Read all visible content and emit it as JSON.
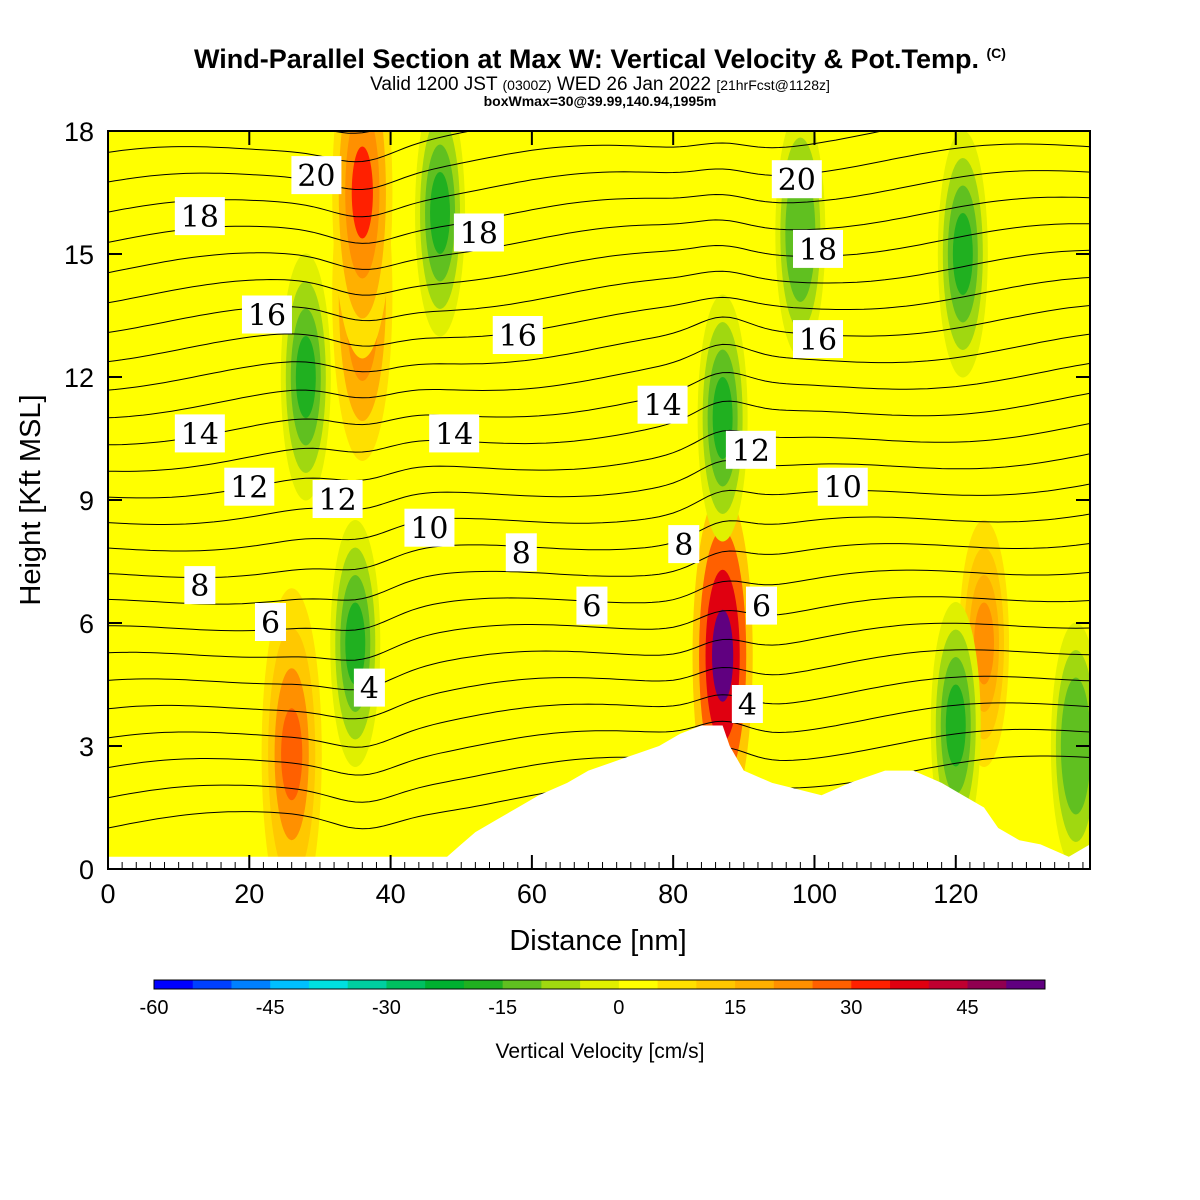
{
  "header": {
    "title": "Wind-Parallel Section at Max W: Vertical Velocity & Pot.Temp.",
    "title_mark": "(C)",
    "valid_prefix": "Valid 1200 JST",
    "valid_utc": "(0300Z)",
    "valid_date": "WED 26 Jan 2022",
    "forecast_tag": "[21hrFcst@1128z]",
    "box_info": "boxWmax=30@39.99,140.94,1995m"
  },
  "chart_data": {
    "type": "heatmap",
    "xlabel": "Distance [nm]",
    "ylabel": "Height [Kft MSL]",
    "xlim": [
      0,
      139
    ],
    "ylim": [
      0,
      18
    ],
    "x_ticks": [
      0,
      20,
      40,
      60,
      80,
      100,
      120
    ],
    "y_ticks": [
      0,
      3,
      6,
      9,
      12,
      15,
      18
    ],
    "grid": false,
    "colorbar": {
      "title": "Vertical Velocity [cm/s]",
      "min": -60,
      "max": 55,
      "step": 5,
      "tick_values": [
        -60,
        -45,
        -30,
        -15,
        0,
        15,
        30,
        45
      ],
      "tick_labels": [
        "-60",
        "-45",
        "-30",
        "-15",
        "0",
        "15",
        "30",
        "45"
      ],
      "colors": [
        "#0000ff",
        "#0040ff",
        "#0080ff",
        "#00c0ff",
        "#00e0e0",
        "#00d0a0",
        "#00c060",
        "#00b030",
        "#20b020",
        "#60c020",
        "#a0d810",
        "#e0f000",
        "#ffff00",
        "#ffe000",
        "#ffc800",
        "#ffb000",
        "#ff9000",
        "#ff6000",
        "#ff2000",
        "#e00010",
        "#c00030",
        "#900050",
        "#600080"
      ]
    },
    "vertical_velocity_features": [
      {
        "x": 26,
        "z": 2.8,
        "w": 28,
        "type": "updraft"
      },
      {
        "x": 36,
        "z": 14,
        "w": 30,
        "type": "updraft"
      },
      {
        "x": 36,
        "z": 16.5,
        "w": 32,
        "type": "updraft"
      },
      {
        "x": 87,
        "z": 5.2,
        "w": 50,
        "type": "updraft"
      },
      {
        "x": 124,
        "z": 5.5,
        "w": 24,
        "type": "updraft"
      },
      {
        "x": 28,
        "z": 12,
        "w": -20,
        "type": "downdraft"
      },
      {
        "x": 47,
        "z": 16,
        "w": -18,
        "type": "downdraft"
      },
      {
        "x": 87,
        "z": 11,
        "w": -20,
        "type": "downdraft"
      },
      {
        "x": 121,
        "z": 15,
        "w": -20,
        "type": "downdraft"
      },
      {
        "x": 35,
        "z": 5.5,
        "w": -18,
        "type": "downdraft"
      },
      {
        "x": 137,
        "z": 3,
        "w": -14,
        "type": "downdraft"
      },
      {
        "x": 120,
        "z": 3.5,
        "w": -16,
        "type": "downdraft"
      },
      {
        "x": 98,
        "z": 15.5,
        "w": -15,
        "type": "downdraft"
      }
    ],
    "terrain_profile": [
      {
        "x": 0,
        "z": 0.3
      },
      {
        "x": 48,
        "z": 0.3
      },
      {
        "x": 50,
        "z": 0.6
      },
      {
        "x": 52,
        "z": 0.9
      },
      {
        "x": 55,
        "z": 1.2
      },
      {
        "x": 58,
        "z": 1.5
      },
      {
        "x": 61,
        "z": 1.8
      },
      {
        "x": 65,
        "z": 2.1
      },
      {
        "x": 68,
        "z": 2.4
      },
      {
        "x": 73,
        "z": 2.7
      },
      {
        "x": 78,
        "z": 3.0
      },
      {
        "x": 81,
        "z": 3.3
      },
      {
        "x": 84,
        "z": 3.5
      },
      {
        "x": 87,
        "z": 3.5
      },
      {
        "x": 88,
        "z": 3.0
      },
      {
        "x": 90,
        "z": 2.4
      },
      {
        "x": 94,
        "z": 2.1
      },
      {
        "x": 101,
        "z": 1.8
      },
      {
        "x": 105,
        "z": 2.1
      },
      {
        "x": 110,
        "z": 2.4
      },
      {
        "x": 114,
        "z": 2.4
      },
      {
        "x": 118,
        "z": 2.1
      },
      {
        "x": 121,
        "z": 1.8
      },
      {
        "x": 124,
        "z": 1.5
      },
      {
        "x": 126,
        "z": 1.0
      },
      {
        "x": 129,
        "z": 0.7
      },
      {
        "x": 132,
        "z": 0.6
      },
      {
        "x": 136,
        "z": 0.3
      },
      {
        "x": 139,
        "z": 0.6
      }
    ],
    "theta_contour_labels": [
      {
        "text": "20",
        "x": 29.5,
        "z": 16.9
      },
      {
        "text": "20",
        "x": 97.5,
        "z": 16.8
      },
      {
        "text": "18",
        "x": 13,
        "z": 15.9
      },
      {
        "text": "18",
        "x": 52.5,
        "z": 15.5
      },
      {
        "text": "18",
        "x": 100.5,
        "z": 15.1
      },
      {
        "text": "16",
        "x": 22.5,
        "z": 13.5
      },
      {
        "text": "16",
        "x": 58,
        "z": 13.0
      },
      {
        "text": "16",
        "x": 100.5,
        "z": 12.9
      },
      {
        "text": "14",
        "x": 13,
        "z": 10.6
      },
      {
        "text": "14",
        "x": 49,
        "z": 10.6
      },
      {
        "text": "14",
        "x": 78.5,
        "z": 11.3
      },
      {
        "text": "12",
        "x": 20,
        "z": 9.3
      },
      {
        "text": "12",
        "x": 32.5,
        "z": 9.0
      },
      {
        "text": "12",
        "x": 91,
        "z": 10.2
      },
      {
        "text": "10",
        "x": 45.5,
        "z": 8.3
      },
      {
        "text": "10",
        "x": 104,
        "z": 9.3
      },
      {
        "text": "8",
        "x": 13,
        "z": 6.9
      },
      {
        "text": "8",
        "x": 58.5,
        "z": 7.7
      },
      {
        "text": "8",
        "x": 81.5,
        "z": 7.9
      },
      {
        "text": "6",
        "x": 23,
        "z": 6.0
      },
      {
        "text": "6",
        "x": 68.5,
        "z": 6.4
      },
      {
        "text": "6",
        "x": 92.5,
        "z": 6.4
      },
      {
        "text": "4",
        "x": 37,
        "z": 4.4
      },
      {
        "text": "4",
        "x": 90.5,
        "z": 4.0
      }
    ]
  }
}
